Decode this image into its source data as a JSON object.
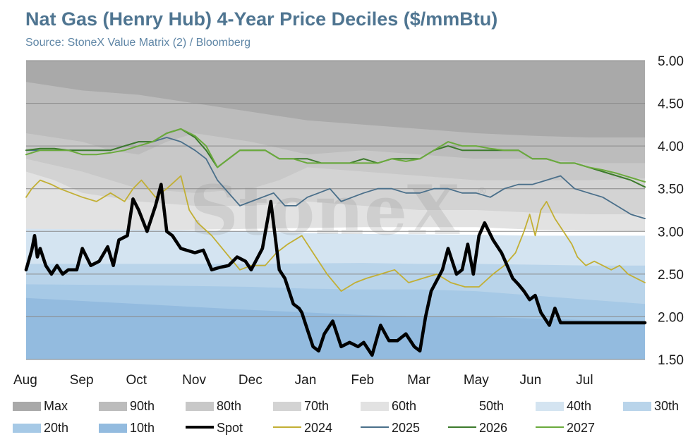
{
  "header": {
    "title": "Nat Gas (Henry Hub) 4-Year Price Deciles ($/mmBtu)",
    "subtitle": "Source: StoneX Value Matrix (2) / Bloomberg"
  },
  "watermark": {
    "text": "StoneX",
    "registered": "®"
  },
  "colors": {
    "spot": "#000000",
    "2024": "#c2af34",
    "2025": "#4a6f8a",
    "2026": "#3c7a2c",
    "2027": "#6aaa3c",
    "band_max": "#a9a9a9",
    "band_90": "#bcbcbc",
    "band_80": "#c8c8c8",
    "band_70": "#d3d3d3",
    "band_60": "#e2e2e2",
    "band_50": "#ffffff",
    "band_40": "#d4e4f1",
    "band_30": "#b9d4ea",
    "band_20": "#a6c9e6",
    "band_10": "#93bbdf",
    "gridline": "#8a8a8a",
    "text": "#1b1b1b"
  },
  "chart_data": {
    "type": "area",
    "title": "Nat Gas (Henry Hub) 4-Year Price Deciles ($/mmBtu)",
    "subtitle": "Source: StoneX Value Matrix (2) / Bloomberg",
    "x_categories": [
      "Aug",
      "Sep",
      "Oct",
      "Nov",
      "Dec",
      "Jan",
      "Feb",
      "Mar",
      "May",
      "Jun",
      "Jul"
    ],
    "x_domain": [
      0,
      11
    ],
    "y_axis": {
      "position": "right",
      "ylim": [
        1.5,
        5.0
      ],
      "ticks": [
        "5.00",
        "4.50",
        "4.00",
        "3.50",
        "3.00",
        "2.50",
        "2.00",
        "1.50"
      ]
    },
    "grid": true,
    "legend_position": "bottom",
    "legend": [
      "Max",
      "90th",
      "80th",
      "70th",
      "60th",
      "50th",
      "40th",
      "30th",
      "20th",
      "10th",
      "Spot",
      "2024",
      "2025",
      "2026",
      "2027"
    ],
    "bands": [
      {
        "name": "Max",
        "x": [
          0,
          2,
          5,
          8,
          11
        ],
        "upper": [
          5.0,
          5.0,
          5.0,
          5.0,
          5.0
        ]
      },
      {
        "name": "90th",
        "x": [
          0,
          1,
          2,
          3,
          4,
          5,
          6,
          7,
          8,
          9,
          10,
          11
        ],
        "upper": [
          4.75,
          4.65,
          4.6,
          4.5,
          4.4,
          4.3,
          4.25,
          4.2,
          4.15,
          4.12,
          4.1,
          4.1
        ]
      },
      {
        "name": "80th",
        "x": [
          0,
          1,
          1.5,
          2,
          2.5,
          3,
          4,
          5,
          6,
          7,
          8,
          9,
          10,
          11
        ],
        "upper": [
          4.15,
          4.05,
          3.95,
          3.9,
          4.05,
          4.15,
          4.05,
          3.9,
          3.95,
          3.9,
          3.85,
          3.85,
          3.8,
          3.8
        ]
      },
      {
        "name": "70th",
        "x": [
          0,
          1,
          2,
          3,
          4,
          4.5,
          5,
          6,
          7,
          8,
          9,
          10,
          11
        ],
        "upper": [
          3.85,
          3.7,
          3.5,
          3.45,
          3.5,
          3.6,
          3.75,
          3.7,
          3.65,
          3.6,
          3.6,
          3.6,
          3.62
        ]
      },
      {
        "name": "60th",
        "x": [
          0,
          0.5,
          1,
          2,
          3,
          4,
          5,
          6,
          7,
          8,
          9,
          10,
          11
        ],
        "upper": [
          3.7,
          3.6,
          3.45,
          3.35,
          3.3,
          3.3,
          3.35,
          3.3,
          3.25,
          3.25,
          3.22,
          3.2,
          3.2
        ]
      },
      {
        "name": "50th",
        "x": [
          0,
          3,
          6,
          8,
          9,
          11
        ],
        "upper": [
          3.0,
          3.02,
          3.05,
          3.05,
          3.02,
          3.0
        ]
      },
      {
        "name": "40th",
        "x": [
          0,
          2,
          4,
          5,
          6,
          8,
          9,
          10,
          11
        ],
        "upper": [
          3.03,
          3.02,
          3.0,
          2.98,
          2.97,
          2.96,
          2.95,
          2.95,
          2.95
        ]
      },
      {
        "name": "30th",
        "x": [
          0,
          2,
          4,
          6,
          7,
          8,
          9,
          10,
          11
        ],
        "upper": [
          2.62,
          2.62,
          2.62,
          2.63,
          2.62,
          2.62,
          2.61,
          2.6,
          2.6
        ]
      },
      {
        "name": "20th",
        "x": [
          0,
          2,
          4,
          5,
          6,
          7,
          8,
          9,
          10,
          11
        ],
        "upper": [
          2.38,
          2.37,
          2.35,
          2.33,
          2.32,
          2.32,
          2.3,
          2.25,
          2.2,
          2.15
        ]
      },
      {
        "name": "10th",
        "x": [
          0,
          2,
          4,
          5,
          6,
          7,
          8,
          9,
          10,
          11
        ],
        "upper": [
          2.22,
          2.15,
          2.08,
          2.05,
          2.02,
          2.0,
          2.0,
          1.98,
          1.96,
          1.95
        ]
      }
    ],
    "series": [
      {
        "name": "Spot",
        "x": [
          0,
          0.1,
          0.15,
          0.2,
          0.25,
          0.35,
          0.45,
          0.55,
          0.65,
          0.75,
          0.9,
          1.0,
          1.15,
          1.3,
          1.45,
          1.55,
          1.65,
          1.8,
          1.9,
          2.0,
          2.15,
          2.3,
          2.4,
          2.5,
          2.6,
          2.75,
          2.85,
          3.0,
          3.15,
          3.3,
          3.45,
          3.6,
          3.75,
          3.9,
          4.0,
          4.2,
          4.35,
          4.5,
          4.6,
          4.75,
          4.85,
          4.9,
          5.0,
          5.1,
          5.2,
          5.3,
          5.45,
          5.6,
          5.75,
          5.9,
          6.0,
          6.15,
          6.3,
          6.45,
          6.6,
          6.75,
          6.9,
          7.0,
          7.1,
          7.2,
          7.4,
          7.5,
          7.65,
          7.75,
          7.85,
          7.95,
          8.05,
          8.15,
          8.3,
          8.45,
          8.55,
          8.65,
          8.75,
          8.85,
          8.95,
          9.05,
          9.15,
          9.3,
          9.4,
          9.5,
          9.6,
          9.7,
          9.85,
          10.0,
          10.1,
          10.25,
          10.4,
          10.5,
          10.65,
          10.75,
          10.85,
          10.95,
          11.0
        ],
        "y": [
          2.55,
          2.78,
          2.95,
          2.7,
          2.8,
          2.6,
          2.5,
          2.6,
          2.5,
          2.55,
          2.55,
          2.8,
          2.6,
          2.65,
          2.82,
          2.6,
          2.9,
          2.95,
          3.38,
          3.25,
          3.0,
          3.3,
          3.55,
          3.0,
          2.95,
          2.8,
          2.78,
          2.75,
          2.78,
          2.55,
          2.58,
          2.6,
          2.7,
          2.65,
          2.55,
          2.8,
          3.35,
          2.55,
          2.45,
          2.15,
          2.1,
          2.05,
          1.85,
          1.65,
          1.6,
          1.8,
          1.95,
          1.65,
          1.7,
          1.65,
          1.7,
          1.55,
          1.9,
          1.72,
          1.72,
          1.8,
          1.65,
          1.6,
          2.0,
          2.3,
          2.55,
          2.8,
          2.5,
          2.55,
          2.85,
          2.5,
          2.95,
          3.1,
          2.9,
          2.75,
          2.6,
          2.45,
          2.38,
          2.3,
          2.2,
          2.25,
          2.05,
          1.9,
          2.1,
          1.93,
          1.93,
          1.93,
          1.93,
          1.93,
          1.93,
          1.93,
          1.93,
          1.93,
          1.93,
          1.93,
          1.93,
          1.93,
          1.93
        ]
      },
      {
        "name": "2024",
        "x": [
          0,
          0.1,
          0.25,
          0.45,
          0.6,
          0.8,
          1.0,
          1.25,
          1.5,
          1.75,
          1.9,
          2.05,
          2.3,
          2.5,
          2.75,
          2.9,
          3.05,
          3.3,
          3.55,
          3.8,
          4.0,
          4.25,
          4.45,
          4.65,
          4.9,
          5.1,
          5.35,
          5.6,
          5.85,
          6.05,
          6.3,
          6.55,
          6.8,
          7.05,
          7.3,
          7.55,
          7.8,
          8.05,
          8.3,
          8.5,
          8.7,
          8.85,
          8.95,
          9.05,
          9.15,
          9.25,
          9.4,
          9.55,
          9.7,
          9.8,
          9.95,
          10.1,
          10.25,
          10.4,
          10.55,
          10.7,
          10.85,
          11.0
        ],
        "y": [
          3.4,
          3.5,
          3.6,
          3.55,
          3.5,
          3.45,
          3.4,
          3.35,
          3.45,
          3.35,
          3.5,
          3.6,
          3.4,
          3.5,
          3.65,
          3.25,
          3.1,
          2.95,
          2.75,
          2.55,
          2.6,
          2.6,
          2.75,
          2.85,
          2.95,
          2.75,
          2.5,
          2.3,
          2.4,
          2.45,
          2.5,
          2.55,
          2.4,
          2.45,
          2.5,
          2.4,
          2.35,
          2.35,
          2.5,
          2.6,
          2.75,
          3.0,
          3.2,
          2.95,
          3.25,
          3.35,
          3.15,
          3.0,
          2.85,
          2.7,
          2.6,
          2.65,
          2.6,
          2.55,
          2.6,
          2.5,
          2.45,
          2.4
        ]
      },
      {
        "name": "2025",
        "x": [
          0,
          0.25,
          0.5,
          0.75,
          1.0,
          1.25,
          1.5,
          1.75,
          2.0,
          2.25,
          2.5,
          2.75,
          3.0,
          3.2,
          3.4,
          3.6,
          3.8,
          4.0,
          4.2,
          4.4,
          4.6,
          4.8,
          5.0,
          5.2,
          5.4,
          5.6,
          5.8,
          6.0,
          6.25,
          6.5,
          6.75,
          7.0,
          7.25,
          7.5,
          7.75,
          8.0,
          8.25,
          8.5,
          8.75,
          9.0,
          9.25,
          9.5,
          9.75,
          10.0,
          10.25,
          10.5,
          10.75,
          11.0
        ],
        "y": [
          3.95,
          3.95,
          3.95,
          3.95,
          3.95,
          3.95,
          3.95,
          4.0,
          4.05,
          4.05,
          4.1,
          4.05,
          3.95,
          3.85,
          3.6,
          3.45,
          3.3,
          3.35,
          3.4,
          3.45,
          3.3,
          3.3,
          3.4,
          3.45,
          3.5,
          3.35,
          3.4,
          3.45,
          3.5,
          3.5,
          3.45,
          3.45,
          3.5,
          3.5,
          3.45,
          3.45,
          3.4,
          3.5,
          3.55,
          3.55,
          3.6,
          3.65,
          3.5,
          3.45,
          3.4,
          3.3,
          3.2,
          3.15
        ]
      },
      {
        "name": "2026",
        "x": [
          0,
          0.25,
          0.5,
          0.75,
          1.0,
          1.25,
          1.5,
          1.75,
          2.0,
          2.25,
          2.5,
          2.75,
          3.0,
          3.2,
          3.4,
          3.6,
          3.8,
          4.0,
          4.25,
          4.5,
          4.75,
          5.0,
          5.25,
          5.5,
          5.75,
          6.0,
          6.25,
          6.5,
          6.75,
          7.0,
          7.25,
          7.5,
          7.75,
          8.0,
          8.25,
          8.5,
          8.75,
          9.0,
          9.25,
          9.5,
          9.75,
          10.0,
          10.25,
          10.5,
          10.75,
          11.0
        ],
        "y": [
          3.95,
          3.97,
          3.97,
          3.95,
          3.95,
          3.95,
          3.95,
          4.0,
          4.05,
          4.05,
          4.15,
          4.2,
          4.1,
          3.95,
          3.75,
          3.85,
          3.95,
          3.95,
          3.95,
          3.85,
          3.85,
          3.85,
          3.8,
          3.8,
          3.8,
          3.85,
          3.8,
          3.85,
          3.85,
          3.85,
          3.95,
          4.0,
          3.95,
          3.95,
          3.95,
          3.95,
          3.95,
          3.85,
          3.85,
          3.8,
          3.8,
          3.75,
          3.7,
          3.65,
          3.6,
          3.52
        ]
      },
      {
        "name": "2027",
        "x": [
          0,
          0.25,
          0.5,
          0.75,
          1.0,
          1.25,
          1.5,
          1.75,
          2.0,
          2.25,
          2.5,
          2.75,
          3.0,
          3.2,
          3.4,
          3.6,
          3.8,
          4.0,
          4.25,
          4.5,
          4.75,
          5.0,
          5.25,
          5.5,
          5.75,
          6.0,
          6.25,
          6.5,
          6.75,
          7.0,
          7.25,
          7.5,
          7.75,
          8.0,
          8.25,
          8.5,
          8.75,
          9.0,
          9.25,
          9.5,
          9.75,
          10.0,
          10.25,
          10.5,
          10.75,
          11.0
        ],
        "y": [
          3.9,
          3.95,
          3.95,
          3.95,
          3.9,
          3.9,
          3.92,
          3.95,
          4.0,
          4.05,
          4.15,
          4.2,
          4.12,
          4.0,
          3.75,
          3.85,
          3.95,
          3.95,
          3.95,
          3.85,
          3.85,
          3.8,
          3.8,
          3.8,
          3.8,
          3.8,
          3.8,
          3.85,
          3.82,
          3.85,
          3.95,
          4.05,
          4.0,
          4.0,
          3.97,
          3.95,
          3.95,
          3.85,
          3.85,
          3.8,
          3.8,
          3.75,
          3.72,
          3.68,
          3.63,
          3.58
        ]
      }
    ]
  }
}
